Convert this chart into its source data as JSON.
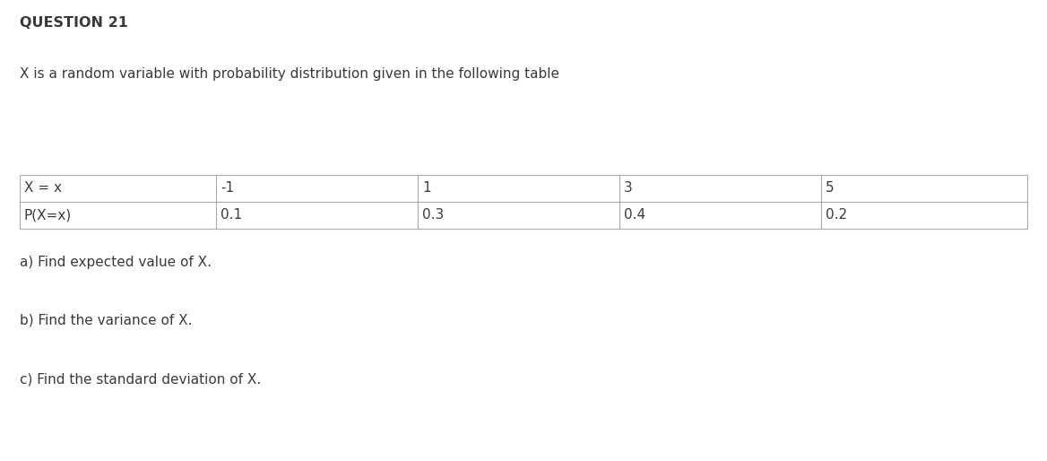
{
  "title": "QUESTION 21",
  "intro_text": "X is a random variable with probability distribution given in the following table",
  "table_row1": [
    "X = x",
    "-1",
    "1",
    "3",
    "5"
  ],
  "table_row2": [
    "P(X=x)",
    "0.1",
    "0.3",
    "0.4",
    "0.2"
  ],
  "question_a": "a) Find expected value of X.",
  "question_b": "b) Find the variance of X.",
  "question_c": "c) Find the standard deviation of X.",
  "bg_color": "#ffffff",
  "text_color": "#3a3a3a",
  "border_color": "#aaaaaa",
  "title_fontsize": 11.5,
  "body_fontsize": 11,
  "table_fontsize": 11,
  "fig_width": 11.68,
  "fig_height": 5.14,
  "dpi": 100
}
